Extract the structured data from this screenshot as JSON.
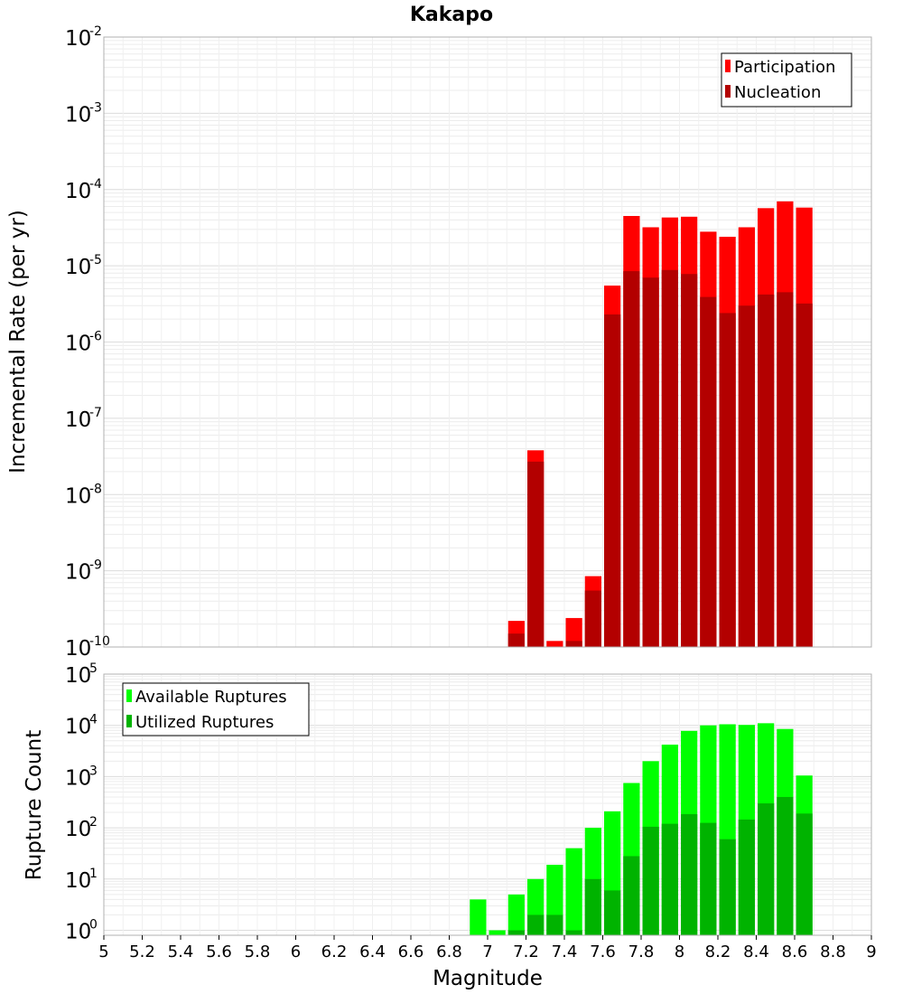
{
  "chart_data": [
    {
      "type": "bar",
      "title": "Kakapo",
      "ylabel": "Incremental Rate (per yr)",
      "xlabel": "",
      "xlim": [
        5,
        9
      ],
      "ylim": [
        1e-10,
        0.01
      ],
      "yscale": "log",
      "grid": true,
      "legend_position": "top-right",
      "x": [
        7.1,
        7.2,
        7.3,
        7.4,
        7.5,
        7.6,
        7.7,
        7.8,
        7.9,
        8.0,
        8.1,
        8.2,
        8.3,
        8.4,
        8.5,
        8.6
      ],
      "series": [
        {
          "name": "Participation",
          "color": "#ff0000",
          "values": [
            2.2e-10,
            3.8e-08,
            1.2e-10,
            2.4e-10,
            8.5e-10,
            5.5e-06,
            4.5e-05,
            3.2e-05,
            4.3e-05,
            4.4e-05,
            2.8e-05,
            2.4e-05,
            3.2e-05,
            5.7e-05,
            7e-05,
            5.8e-05
          ]
        },
        {
          "name": "Nucleation",
          "color": "#b30000",
          "values": [
            1.5e-10,
            2.7e-08,
            1e-10,
            1.2e-10,
            5.5e-10,
            2.3e-06,
            8.5e-06,
            7e-06,
            8.8e-06,
            7.8e-06,
            3.9e-06,
            2.4e-06,
            3e-06,
            4.2e-06,
            4.5e-06,
            3.2e-06
          ]
        }
      ]
    },
    {
      "type": "bar",
      "title": "",
      "ylabel": "Rupture Count",
      "xlabel": "Magnitude",
      "xlim": [
        5,
        9
      ],
      "ylim": [
        0.8,
        100000.0
      ],
      "yscale": "log",
      "grid": true,
      "legend_position": "top-left",
      "x": [
        6.9,
        7.0,
        7.1,
        7.2,
        7.3,
        7.4,
        7.5,
        7.6,
        7.7,
        7.8,
        7.9,
        8.0,
        8.1,
        8.2,
        8.3,
        8.4,
        8.5,
        8.6
      ],
      "series": [
        {
          "name": "Available Ruptures",
          "color": "#00ff00",
          "values": [
            4,
            1,
            5,
            10,
            19,
            40,
            100,
            210,
            750,
            2000,
            4200,
            7800,
            10000,
            10500,
            10200,
            11000,
            8500,
            1050
          ]
        },
        {
          "name": "Utilized Ruptures",
          "color": "#00b300",
          "values": [
            0,
            0,
            1,
            2,
            2,
            1,
            10,
            6,
            28,
            105,
            120,
            185,
            125,
            60,
            145,
            300,
            400,
            190
          ]
        }
      ],
      "xticks": [
        "5",
        "5.2",
        "5.4",
        "5.6",
        "5.8",
        "6",
        "6.2",
        "6.4",
        "6.6",
        "6.8",
        "7",
        "7.2",
        "7.4",
        "7.6",
        "7.8",
        "8",
        "8.2",
        "8.4",
        "8.6",
        "8.8",
        "9"
      ]
    }
  ],
  "top_ticks": [
    {
      "base": "10",
      "exp": "-2"
    },
    {
      "base": "10",
      "exp": "-3"
    },
    {
      "base": "10",
      "exp": "-4"
    },
    {
      "base": "10",
      "exp": "-5"
    },
    {
      "base": "10",
      "exp": "-6"
    },
    {
      "base": "10",
      "exp": "-7"
    },
    {
      "base": "10",
      "exp": "-8"
    },
    {
      "base": "10",
      "exp": "-9"
    },
    {
      "base": "10",
      "exp": "-10"
    }
  ],
  "bottom_ticks": [
    {
      "base": "10",
      "exp": "5"
    },
    {
      "base": "10",
      "exp": "4"
    },
    {
      "base": "10",
      "exp": "3"
    },
    {
      "base": "10",
      "exp": "2"
    },
    {
      "base": "10",
      "exp": "1"
    },
    {
      "base": "10",
      "exp": "0"
    }
  ]
}
